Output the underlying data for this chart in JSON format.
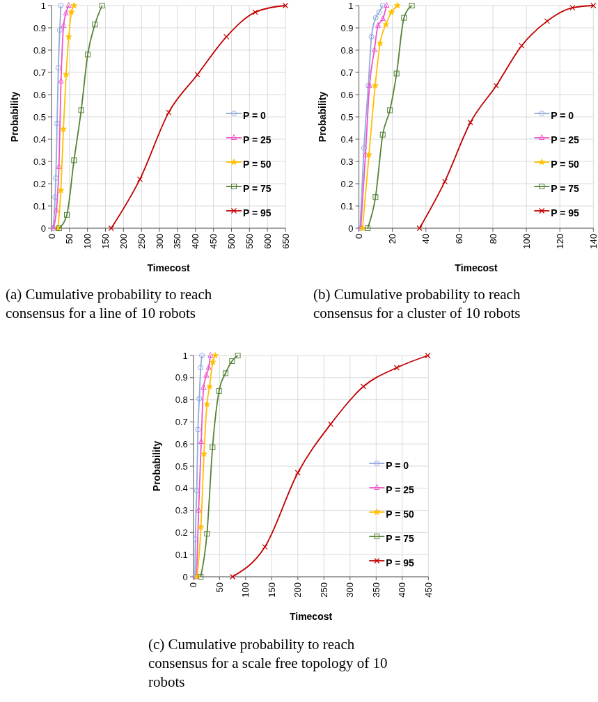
{
  "chart_data": [
    {
      "type": "line",
      "xlabel": "Timecost",
      "ylabel": "Probability",
      "xlim": [
        0,
        650
      ],
      "xticks": [
        0,
        50,
        100,
        150,
        200,
        250,
        300,
        350,
        400,
        450,
        500,
        550,
        600,
        650
      ],
      "ylim": [
        0,
        1
      ],
      "yticks": [
        0,
        0.1,
        0.2,
        0.3,
        0.4,
        0.5,
        0.6,
        0.7,
        0.8,
        0.9,
        1
      ],
      "grid": true,
      "legend": "right",
      "annotations": [
        "(a) Cumulative probability to reach consensus for a line of 10 robots"
      ],
      "series": [
        {
          "name": "P = 0",
          "color": "#8faadc",
          "marker": "circle",
          "x": [
            5,
            10,
            12,
            15.5,
            19,
            23,
            26
          ],
          "values": [
            0,
            0.14,
            0.225,
            0.47,
            0.72,
            0.89,
            1
          ]
        },
        {
          "name": "P = 25",
          "color": "#ee55cc",
          "marker": "triangle",
          "x": [
            5,
            13.5,
            20.6,
            26.4,
            33.5,
            40,
            48
          ],
          "values": [
            0,
            0.08,
            0.275,
            0.66,
            0.91,
            0.965,
            1
          ]
        },
        {
          "name": "P = 50",
          "color": "#ffc000",
          "marker": "star",
          "x": [
            18,
            26,
            33,
            40.6,
            48,
            55.5,
            62.5
          ],
          "values": [
            0,
            0.17,
            0.445,
            0.69,
            0.86,
            0.97,
            1
          ]
        },
        {
          "name": "P = 75",
          "color": "#548235",
          "marker": "square",
          "x": [
            21,
            42.5,
            62.5,
            82.5,
            100.6,
            120.6,
            140.6
          ],
          "values": [
            0,
            0.06,
            0.305,
            0.53,
            0.78,
            0.915,
            1
          ]
        },
        {
          "name": "P = 95",
          "color": "#c00000",
          "marker": "cross",
          "x": [
            166,
            245.6,
            325.6,
            405.5,
            486,
            566,
            650
          ],
          "values": [
            0,
            0.22,
            0.52,
            0.69,
            0.86,
            0.97,
            1
          ]
        }
      ]
    },
    {
      "type": "line",
      "xlabel": "Timecost",
      "ylabel": "Probability",
      "xlim": [
        0,
        140
      ],
      "xticks": [
        0,
        20,
        40,
        60,
        80,
        100,
        120,
        140
      ],
      "ylim": [
        0,
        1
      ],
      "yticks": [
        0,
        0.1,
        0.2,
        0.3,
        0.4,
        0.5,
        0.6,
        0.7,
        0.8,
        0.9,
        1
      ],
      "grid": true,
      "legend": "right",
      "annotations": [
        "(b) Cumulative probability to reach consensus for a cluster of 10 robots"
      ],
      "series": [
        {
          "name": "P = 0",
          "color": "#8faadc",
          "marker": "circle",
          "x": [
            0.7,
            3,
            5.6,
            7.5,
            10,
            12,
            14.2
          ],
          "values": [
            0,
            0.36,
            0.64,
            0.86,
            0.945,
            0.97,
            1
          ]
        },
        {
          "name": "P = 25",
          "color": "#ee55cc",
          "marker": "triangle",
          "x": [
            1.1,
            3.9,
            6.3,
            9.2,
            11.4,
            14.3,
            16.5
          ],
          "values": [
            0,
            0.33,
            0.64,
            0.8,
            0.91,
            0.94,
            1
          ]
        },
        {
          "name": "P = 50",
          "color": "#ffc000",
          "marker": "star",
          "x": [
            2.2,
            6,
            9.7,
            12.6,
            16.1,
            19.4,
            23
          ],
          "values": [
            0,
            0.33,
            0.64,
            0.83,
            0.915,
            0.97,
            1
          ]
        },
        {
          "name": "P = 75",
          "color": "#548235",
          "marker": "square",
          "x": [
            5.2,
            9.9,
            14.2,
            18.5,
            22.5,
            26.9,
            31.6
          ],
          "values": [
            0,
            0.14,
            0.42,
            0.53,
            0.695,
            0.945,
            1
          ]
        },
        {
          "name": "P = 95",
          "color": "#c00000",
          "marker": "cross",
          "x": [
            36.2,
            51.3,
            66.6,
            82,
            97.2,
            112.4,
            127.5,
            140
          ],
          "values": [
            0,
            0.21,
            0.475,
            0.64,
            0.82,
            0.93,
            0.99,
            1
          ]
        }
      ]
    },
    {
      "type": "line",
      "xlabel": "Timecost",
      "ylabel": "Probability",
      "xlim": [
        0,
        450
      ],
      "xticks": [
        0,
        50,
        100,
        150,
        200,
        250,
        300,
        350,
        400,
        450
      ],
      "ylim": [
        0,
        1
      ],
      "yticks": [
        0,
        0.1,
        0.2,
        0.3,
        0.4,
        0.5,
        0.6,
        0.7,
        0.8,
        0.9,
        1
      ],
      "grid": true,
      "legend": "right",
      "annotations": [
        "(c) Cumulative probability to reach consensus for a scale free topology of 10 robots"
      ],
      "series": [
        {
          "name": "P = 0",
          "color": "#8faadc",
          "marker": "circle",
          "x": [
            3,
            3.8,
            6.5,
            8.7,
            11.3,
            14,
            16.3
          ],
          "values": [
            0,
            0.17,
            0.39,
            0.665,
            0.805,
            0.945,
            1
          ]
        },
        {
          "name": "P = 25",
          "color": "#ee55cc",
          "marker": "triangle",
          "x": [
            6,
            10,
            15,
            19.4,
            24.7,
            29.2,
            32.7
          ],
          "values": [
            0,
            0.3,
            0.61,
            0.855,
            0.91,
            0.945,
            1
          ]
        },
        {
          "name": "P = 50",
          "color": "#ffc000",
          "marker": "star",
          "x": [
            7.4,
            14.5,
            20.3,
            26,
            31,
            37.2,
            42
          ],
          "values": [
            0,
            0.225,
            0.555,
            0.78,
            0.86,
            0.97,
            1
          ]
        },
        {
          "name": "P = 75",
          "color": "#548235",
          "marker": "square",
          "x": [
            14,
            26,
            36.7,
            49.2,
            61.6,
            74,
            85
          ],
          "values": [
            0,
            0.195,
            0.585,
            0.84,
            0.92,
            0.975,
            1
          ]
        },
        {
          "name": "P = 95",
          "color": "#c00000",
          "marker": "cross",
          "x": [
            75,
            137,
            200,
            263,
            325.6,
            389.6,
            449
          ],
          "values": [
            0,
            0.135,
            0.47,
            0.69,
            0.86,
            0.945,
            1
          ]
        }
      ]
    }
  ]
}
